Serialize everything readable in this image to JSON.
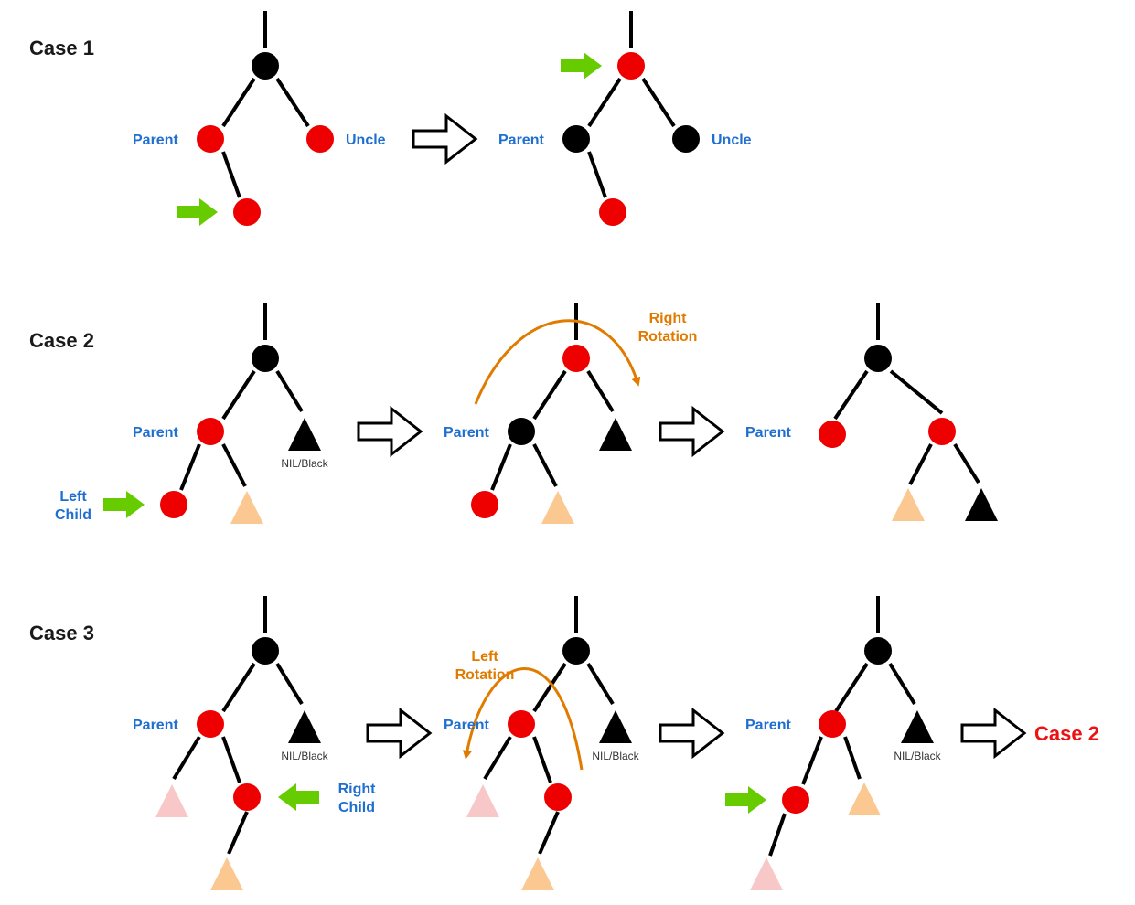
{
  "case1": {
    "title": "Case 1",
    "parent": "Parent",
    "uncle": "Uncle"
  },
  "case2": {
    "title": "Case 2",
    "parent": "Parent",
    "nil": "NIL/Black",
    "left_child": [
      "Left",
      "Child"
    ],
    "rotation": [
      "Right",
      "Rotation"
    ]
  },
  "case3": {
    "title": "Case 3",
    "parent": "Parent",
    "nil": "NIL/Black",
    "right_child": [
      "Right",
      "Child"
    ],
    "rotation": [
      "Left",
      "Rotation"
    ],
    "result": "Case 2"
  },
  "colors": {
    "red": "#ee0000",
    "black": "#000000",
    "green": "#66cc00",
    "orange": "#e07b00",
    "tan": "#fac890",
    "pink": "#f8c8c8",
    "blue": "#1f6fd1"
  }
}
